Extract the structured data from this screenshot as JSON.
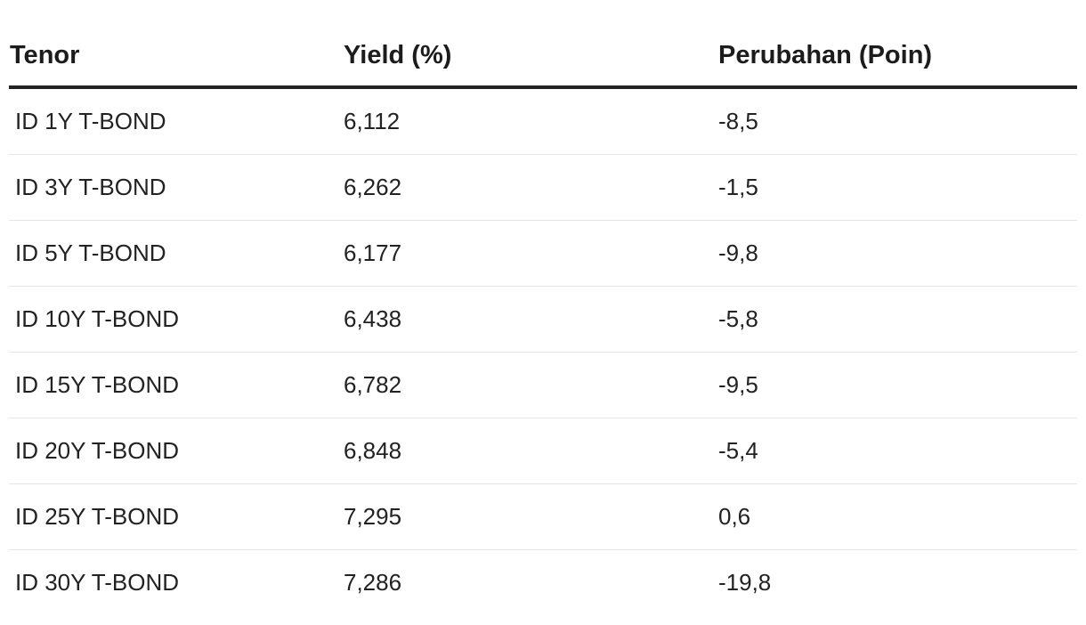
{
  "table": {
    "headers": [
      "Tenor",
      "Yield (%)",
      "Perubahan (Poin)"
    ],
    "rows": [
      [
        "ID 1Y T-BOND",
        "6,112",
        "-8,5"
      ],
      [
        "ID 3Y T-BOND",
        "6,262",
        "-1,5"
      ],
      [
        "ID 5Y T-BOND",
        "6,177",
        "-9,8"
      ],
      [
        "ID 10Y T-BOND",
        "6,438",
        "-5,8"
      ],
      [
        "ID 15Y T-BOND",
        "6,782",
        "-9,5"
      ],
      [
        "ID 20Y T-BOND",
        "6,848",
        "-5,4"
      ],
      [
        "ID 25Y T-BOND",
        "7,295",
        "0,6"
      ],
      [
        "ID 30Y T-BOND",
        "7,286",
        "-19,8"
      ]
    ]
  }
}
